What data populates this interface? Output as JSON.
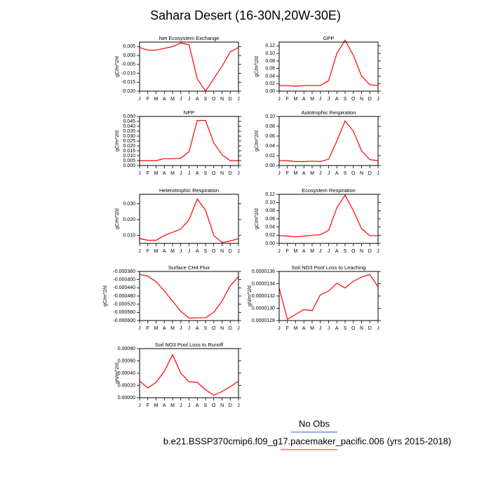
{
  "title": "Sahara Desert (16-30N,20W-30E)",
  "legend": [
    {
      "name": "No Obs",
      "color": "#3355cc"
    },
    {
      "name": "b.e21.BSSP370cmip6.f09_g17.pacemaker_pacific.006 (yrs 2015-2018)",
      "color": "#e03030"
    }
  ],
  "chart_data": [
    {
      "type": "line",
      "title": "Net Ecosystem Exchange",
      "y_label": "gC/m^2/d",
      "color": "#ff0000",
      "categories": [
        "J",
        "F",
        "M",
        "A",
        "M",
        "J",
        "J",
        "A",
        "S",
        "O",
        "N",
        "D",
        "J"
      ],
      "values": [
        0.0045,
        0.003,
        0.003,
        0.004,
        0.005,
        0.007,
        0.006,
        -0.013,
        -0.02,
        -0.013,
        -0.006,
        0.002,
        0.0045
      ],
      "ylim": [
        -0.02,
        0.0075
      ],
      "yticks": [
        0.005,
        {
          "value": 0,
          "label": "0.000"
        },
        -0.005,
        {
          "value": -0.01,
          "label": "-0.010"
        },
        -0.015,
        {
          "value": -0.02,
          "label": "-0.020"
        }
      ]
    },
    {
      "type": "line",
      "title": "GPP",
      "y_label": "gC/m^2/d",
      "color": "#ff0000",
      "categories": [
        "J",
        "F",
        "M",
        "A",
        "M",
        "J",
        "J",
        "A",
        "S",
        "O",
        "N",
        "D",
        "J"
      ],
      "values": [
        0.015,
        0.015,
        0.013,
        0.015,
        0.015,
        0.015,
        0.028,
        0.1,
        0.135,
        0.095,
        0.04,
        0.017,
        0.015
      ],
      "ylim": [
        0,
        0.13
      ],
      "yticks": [
        {
          "value": 0,
          "label": "0.00"
        },
        0.02,
        0.04,
        0.06,
        0.08,
        {
          "value": 0.1,
          "label": "0.10"
        },
        0.12
      ]
    },
    {
      "type": "line",
      "title": "NPP",
      "y_label": "gC/m^2/d",
      "color": "#ff0000",
      "categories": [
        "J",
        "F",
        "M",
        "A",
        "M",
        "J",
        "J",
        "A",
        "S",
        "O",
        "N",
        "D",
        "J"
      ],
      "values": [
        0.005,
        0.005,
        0.005,
        0.007,
        0.007,
        0.0075,
        0.014,
        0.046,
        0.046,
        0.023,
        0.011,
        0.005,
        0.005
      ],
      "ylim": [
        0,
        0.05
      ],
      "yticks": [
        {
          "value": 0,
          "label": "0.000"
        },
        0.005,
        {
          "value": 0.01,
          "label": "0.010"
        },
        0.015,
        {
          "value": 0.02,
          "label": "0.020"
        },
        0.025,
        {
          "value": 0.03,
          "label": "0.030"
        },
        0.035,
        {
          "value": 0.04,
          "label": "0.040"
        },
        0.045,
        {
          "value": 0.05,
          "label": "0.050"
        }
      ]
    },
    {
      "type": "line",
      "title": "Autotrophic Respiration",
      "y_label": "gC/m^2/d",
      "color": "#ff0000",
      "categories": [
        "J",
        "F",
        "M",
        "A",
        "M",
        "J",
        "J",
        "A",
        "S",
        "O",
        "N",
        "D",
        "J"
      ],
      "values": [
        0.01,
        0.01,
        0.008,
        0.008,
        0.009,
        0.008,
        0.013,
        0.05,
        0.091,
        0.07,
        0.03,
        0.012,
        0.01
      ],
      "ylim": [
        0,
        0.1
      ],
      "yticks": [
        {
          "value": 0,
          "label": "0.00"
        },
        0.02,
        0.04,
        0.06,
        0.08,
        {
          "value": 0.1,
          "label": "0.10"
        }
      ]
    },
    {
      "type": "line",
      "title": "Heterotrophic Respiration",
      "y_label": "gC/m^2/d",
      "color": "#ff0000",
      "categories": [
        "J",
        "F",
        "M",
        "A",
        "M",
        "J",
        "J",
        "A",
        "S",
        "O",
        "N",
        "D",
        "J"
      ],
      "values": [
        0.008,
        0.007,
        0.007,
        0.01,
        0.012,
        0.014,
        0.02,
        0.033,
        0.026,
        0.01,
        0.0055,
        0.0065,
        0.008
      ],
      "ylim": [
        0.005,
        0.036
      ],
      "yticks": [
        {
          "value": 0.01,
          "label": "0.010"
        },
        {
          "value": 0.02,
          "label": "0.020"
        },
        {
          "value": 0.03,
          "label": "0.030"
        }
      ]
    },
    {
      "type": "line",
      "title": "Ecosystem Respiration",
      "y_label": "gC/m^2/d",
      "color": "#ff0000",
      "categories": [
        "J",
        "F",
        "M",
        "A",
        "M",
        "J",
        "J",
        "A",
        "S",
        "O",
        "N",
        "D",
        "J"
      ],
      "values": [
        0.019,
        0.018,
        0.016,
        0.018,
        0.02,
        0.021,
        0.032,
        0.087,
        0.118,
        0.08,
        0.036,
        0.019,
        0.019
      ],
      "ylim": [
        0,
        0.12
      ],
      "yticks": [
        {
          "value": 0,
          "label": "0.00"
        },
        0.02,
        0.04,
        0.06,
        0.08,
        {
          "value": 0.1,
          "label": "0.10"
        },
        0.12
      ]
    },
    {
      "type": "line",
      "title": "Surface CH4 Flux",
      "y_label": "gC/m^2/d",
      "color": "#ff0000",
      "categories": [
        "J",
        "F",
        "M",
        "A",
        "M",
        "J",
        "J",
        "A",
        "S",
        "O",
        "N",
        "D",
        "J"
      ],
      "values": [
        -0.000375,
        -0.000383,
        -0.00041,
        -0.000455,
        -0.000505,
        -0.000555,
        -0.000588,
        -0.000587,
        -0.000586,
        -0.00056,
        -0.000505,
        -0.00043,
        -0.000385
      ],
      "ylim": [
        -0.0006,
        -0.00036
      ],
      "yticks": [
        {
          "value": -0.00036,
          "label": "-0.000360"
        },
        {
          "value": -0.0004,
          "label": "-0.000400"
        },
        {
          "value": -0.00044,
          "label": "-0.000440"
        },
        {
          "value": -0.00048,
          "label": "-0.000480"
        },
        {
          "value": -0.00052,
          "label": "-0.000520"
        },
        {
          "value": -0.00056,
          "label": "-0.000560"
        },
        {
          "value": -0.0006,
          "label": "-0.000600"
        }
      ]
    },
    {
      "type": "line",
      "title": "Soil NO3 Pool Loss to Leaching",
      "y_label": "gN/m^2/d",
      "color": "#ff0000",
      "categories": [
        "J",
        "F",
        "M",
        "A",
        "M",
        "J",
        "J",
        "A",
        "S",
        "O",
        "N",
        "D",
        "J"
      ],
      "values": [
        1.333e-05,
        1.282e-05,
        1.29e-05,
        1.298e-05,
        1.296e-05,
        1.322e-05,
        1.328e-05,
        1.341e-05,
        1.333e-05,
        1.344e-05,
        1.351e-05,
        1.355e-05,
        1.335e-05
      ],
      "ylim": [
        1.28e-05,
        1.36e-05
      ],
      "yticks": [
        {
          "value": 1.28e-05,
          "label": "0.0000128"
        },
        {
          "value": 1.3e-05,
          "label": "0.0000130"
        },
        {
          "value": 1.32e-05,
          "label": "0.0000132"
        },
        {
          "value": 1.34e-05,
          "label": "0.0000134"
        },
        {
          "value": 1.36e-05,
          "label": "0.0000136"
        }
      ]
    },
    {
      "type": "line",
      "title": "Soil NO3 Pool Loss to Runoff",
      "y_label": "gN/m^2/d",
      "color": "#ff0000",
      "categories": [
        "J",
        "F",
        "M",
        "A",
        "M",
        "J",
        "J",
        "A",
        "S",
        "O",
        "N",
        "D",
        "J"
      ],
      "values": [
        0.00027,
        0.00016,
        0.00025,
        0.00043,
        0.0007,
        0.0004,
        0.00026,
        0.00025,
        0.00013,
        4e-05,
        0.0001,
        0.00018,
        0.00027
      ],
      "ylim": [
        0,
        0.0008
      ],
      "yticks": [
        {
          "value": 0,
          "label": "0.00000"
        },
        {
          "value": 0.0002,
          "label": "0.00020"
        },
        {
          "value": 0.0004,
          "label": "0.00040"
        },
        {
          "value": 0.0006,
          "label": "0.00060"
        },
        {
          "value": 0.0008,
          "label": "0.00080"
        }
      ]
    }
  ]
}
